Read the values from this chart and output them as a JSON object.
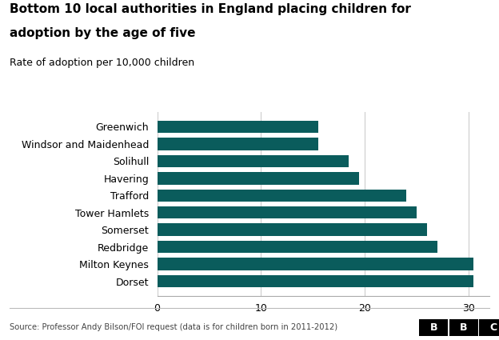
{
  "title_line1": "Bottom 10 local authorities in England placing children for",
  "title_line2": "adoption by the age of five",
  "subtitle": "Rate of adoption per 10,000 children",
  "categories": [
    "Dorset",
    "Milton Keynes",
    "Redbridge",
    "Somerset",
    "Tower Hamlets",
    "Trafford",
    "Havering",
    "Solihull",
    "Windsor and Maidenhead",
    "Greenwich"
  ],
  "values": [
    30.5,
    30.5,
    27.0,
    26.0,
    25.0,
    24.0,
    19.5,
    18.5,
    15.5,
    15.5
  ],
  "bar_color": "#0a5c5c",
  "background_color": "#ffffff",
  "xlim": [
    0,
    32
  ],
  "xticks": [
    0,
    10,
    20,
    30
  ],
  "source_text": "Source: Professor Andy Bilson/FOI request (data is for children born in 2011-2012)"
}
